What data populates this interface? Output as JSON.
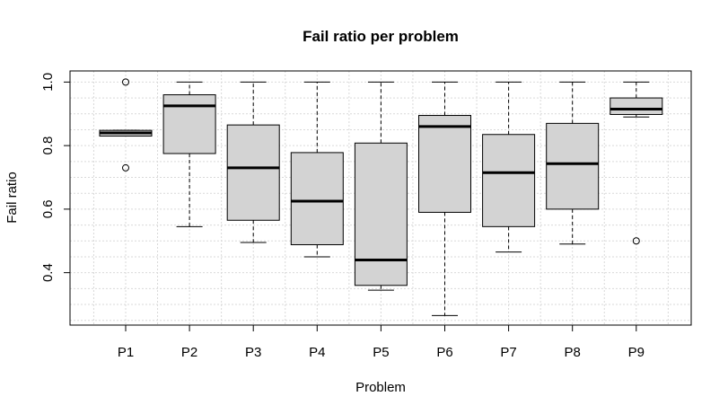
{
  "chart_data": {
    "type": "boxplot",
    "title": "Fail ratio per problem",
    "xlabel": "Problem",
    "ylabel": "Fail ratio",
    "ylim": [
      0.235,
      1.035
    ],
    "yticks": [
      0.4,
      0.6,
      0.8,
      1.0
    ],
    "ytick_labels": [
      "0.4",
      "0.6",
      "0.8",
      "1.0"
    ],
    "grid": true,
    "box_fill": "#d3d3d3",
    "categories": [
      "P1",
      "P2",
      "P3",
      "P4",
      "P5",
      "P6",
      "P7",
      "P8",
      "P9"
    ],
    "boxes": [
      {
        "category": "P1",
        "whisker_low": 0.83,
        "q1": 0.83,
        "median": 0.84,
        "q3": 0.848,
        "whisker_high": 0.848,
        "outliers": [
          1.0,
          0.73
        ]
      },
      {
        "category": "P2",
        "whisker_low": 0.545,
        "q1": 0.775,
        "median": 0.925,
        "q3": 0.96,
        "whisker_high": 1.0,
        "outliers": []
      },
      {
        "category": "P3",
        "whisker_low": 0.495,
        "q1": 0.565,
        "median": 0.73,
        "q3": 0.865,
        "whisker_high": 1.0,
        "outliers": []
      },
      {
        "category": "P4",
        "whisker_low": 0.45,
        "q1": 0.488,
        "median": 0.625,
        "q3": 0.778,
        "whisker_high": 1.0,
        "outliers": []
      },
      {
        "category": "P5",
        "whisker_low": 0.345,
        "q1": 0.36,
        "median": 0.44,
        "q3": 0.808,
        "whisker_high": 1.0,
        "outliers": []
      },
      {
        "category": "P6",
        "whisker_low": 0.265,
        "q1": 0.59,
        "median": 0.86,
        "q3": 0.895,
        "whisker_high": 1.0,
        "outliers": []
      },
      {
        "category": "P7",
        "whisker_low": 0.465,
        "q1": 0.545,
        "median": 0.715,
        "q3": 0.835,
        "whisker_high": 1.0,
        "outliers": []
      },
      {
        "category": "P8",
        "whisker_low": 0.49,
        "q1": 0.6,
        "median": 0.743,
        "q3": 0.87,
        "whisker_high": 1.0,
        "outliers": []
      },
      {
        "category": "P9",
        "whisker_low": 0.89,
        "q1": 0.898,
        "median": 0.915,
        "q3": 0.95,
        "whisker_high": 1.0,
        "outliers": [
          0.5
        ]
      }
    ]
  }
}
